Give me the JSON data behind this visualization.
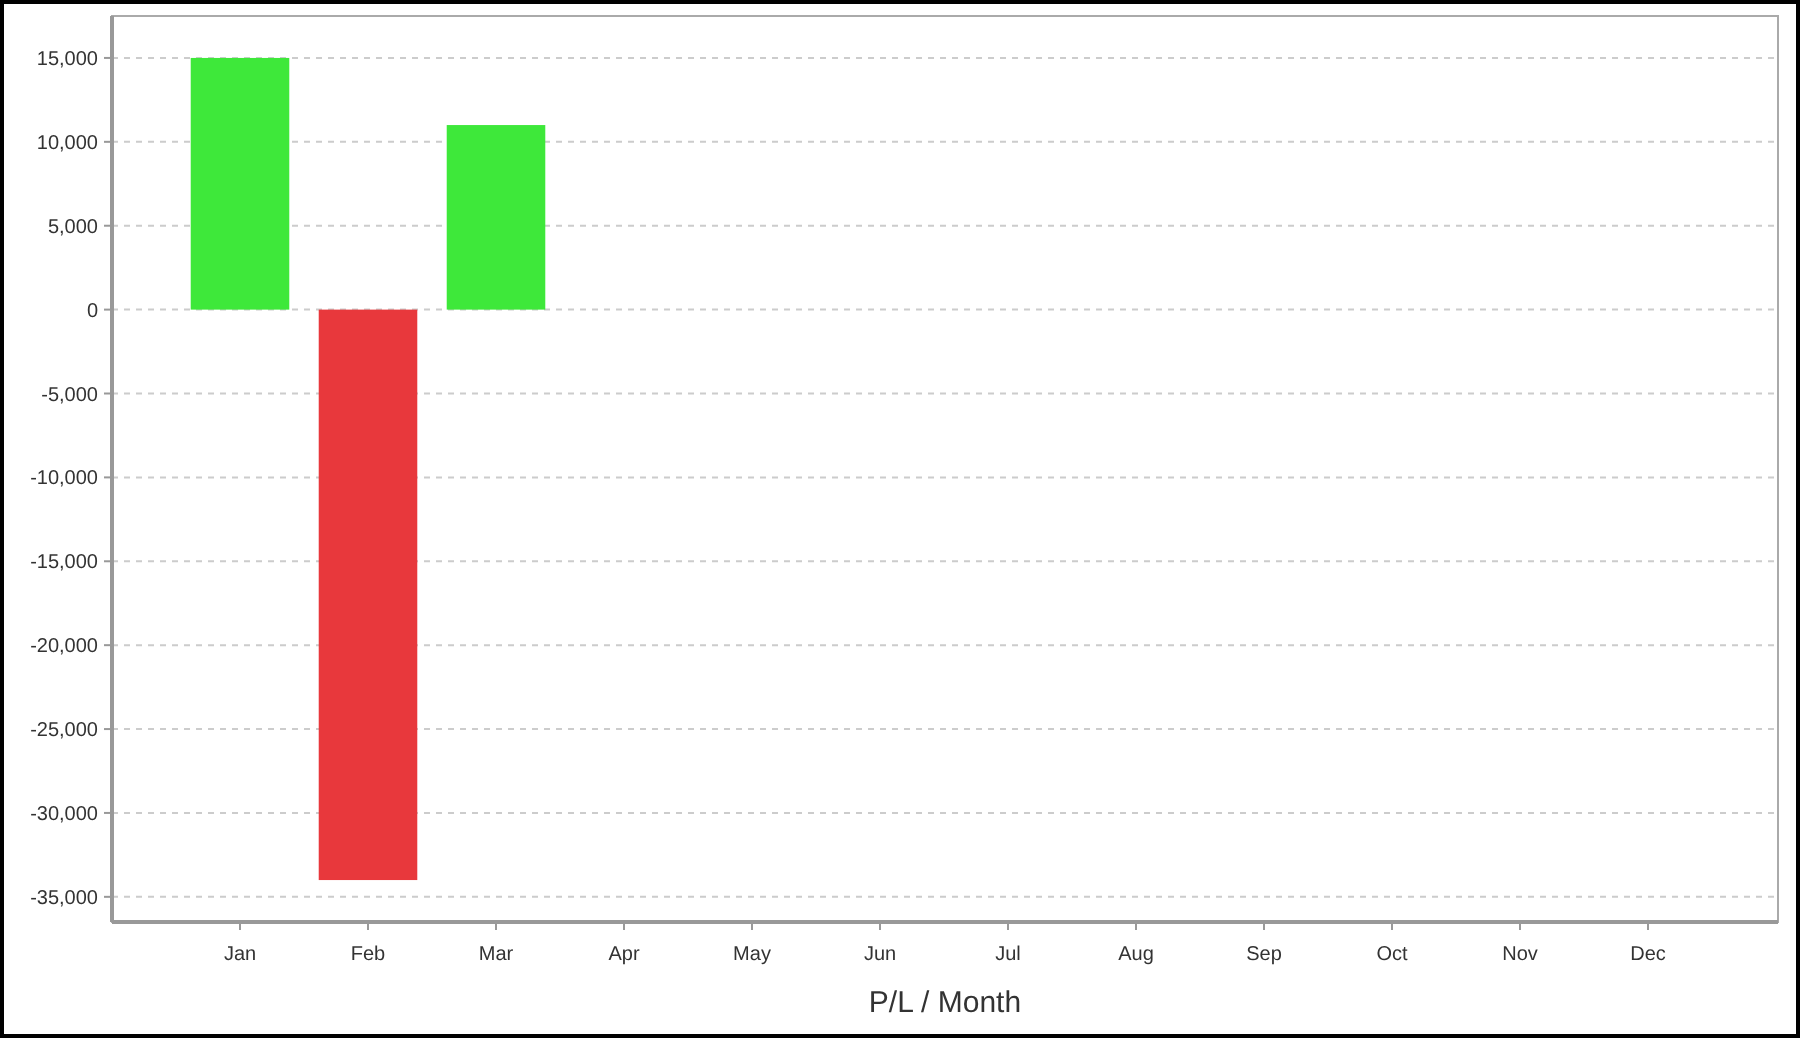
{
  "chart_data": {
    "type": "bar",
    "xlabel": "P/L / Month",
    "categories": [
      "Jan",
      "Feb",
      "Mar",
      "Apr",
      "May",
      "Jun",
      "Jul",
      "Aug",
      "Sep",
      "Oct",
      "Nov",
      "Dec"
    ],
    "values": [
      15000,
      -34000,
      11000,
      null,
      null,
      null,
      null,
      null,
      null,
      null,
      null,
      null
    ],
    "colors": [
      "#3ee83a",
      "#e8383c",
      "#3ee83a",
      null,
      null,
      null,
      null,
      null,
      null,
      null,
      null,
      null
    ],
    "ylim": [
      -36500,
      17500
    ],
    "yticks": [
      {
        "value": 15000,
        "label": "15,000"
      },
      {
        "value": 10000,
        "label": "10,000"
      },
      {
        "value": 5000,
        "label": "5,000"
      },
      0,
      {
        "value": -5000,
        "label": "-5,000"
      },
      {
        "value": -10000,
        "label": "-10,000"
      },
      {
        "value": -15000,
        "label": "-15,000"
      },
      {
        "value": -20000,
        "label": "-20,000"
      },
      {
        "value": -25000,
        "label": "-25,000"
      },
      {
        "value": -30000,
        "label": "-30,000"
      },
      {
        "value": -35000,
        "label": "-35,000"
      }
    ],
    "grid": "y"
  }
}
